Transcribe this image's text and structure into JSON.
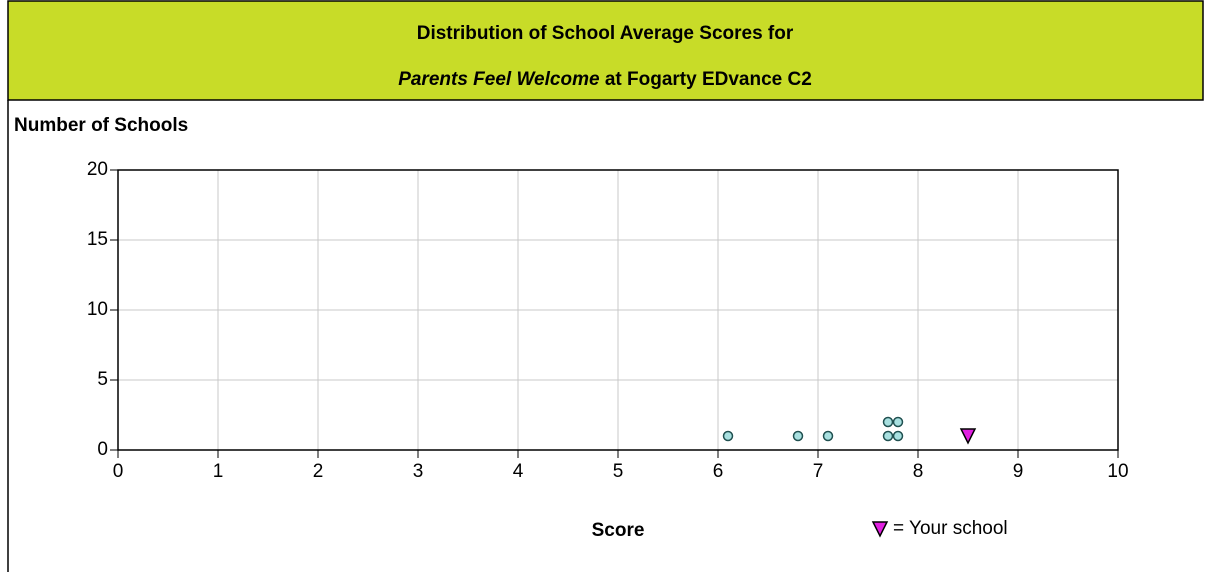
{
  "chart_data": {
    "type": "scatter",
    "title": "Distribution of School Average Scores for",
    "subtitle_italic": "Parents Feel Welcome",
    "subtitle": "at Fogarty EDvance C2",
    "ylabel": "Number of Schools",
    "xlabel": "Score",
    "x": [
      6.1,
      6.8,
      7.1,
      7.7,
      7.8,
      7.7,
      7.8
    ],
    "values": [
      1,
      1,
      1,
      1,
      1,
      2,
      2
    ],
    "color": "#a8e0e0",
    "highlight": {
      "x": 8.5,
      "value": 1,
      "color": "#e020e0",
      "label": "= Your school"
    },
    "xlim": [
      0,
      10
    ],
    "xticks": [
      0,
      1,
      2,
      3,
      4,
      5,
      6,
      7,
      8,
      9,
      10
    ],
    "ylim": [
      0,
      20
    ],
    "yticks": [
      0,
      5,
      10,
      15,
      20
    ],
    "grid": true
  }
}
